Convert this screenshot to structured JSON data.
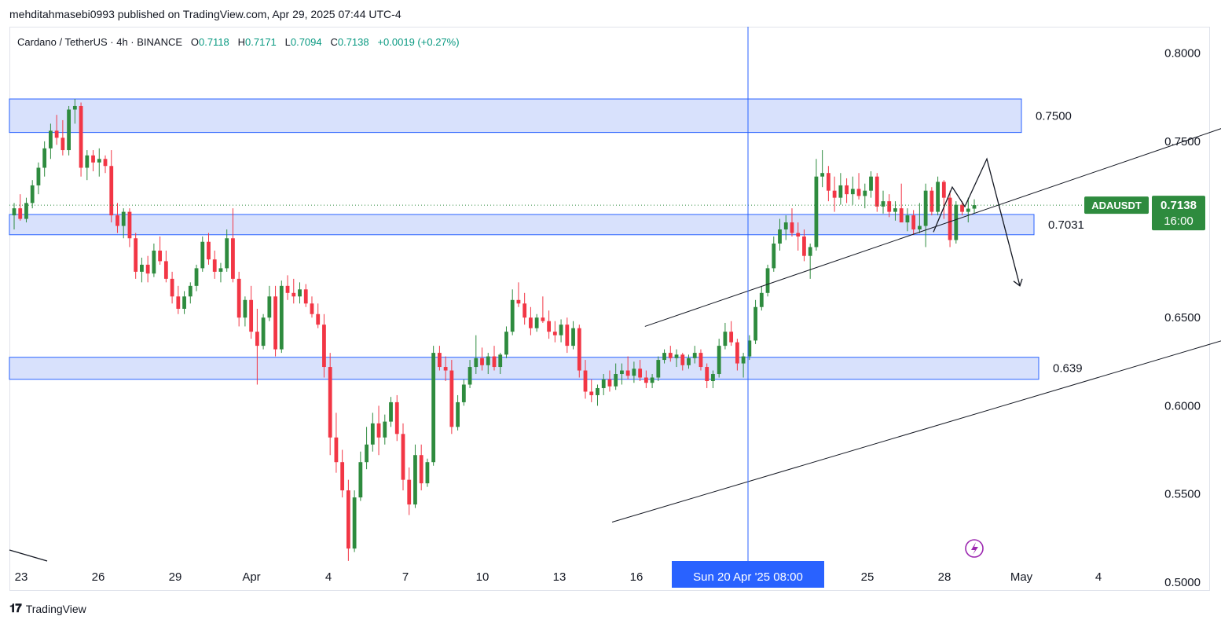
{
  "header": {
    "published_by": "mehditahmasebi0993 published on TradingView.com, Apr 29, 2025 07:44 UTC-4"
  },
  "legend": {
    "symbol": "Cardano / TetherUS · 4h · BINANCE",
    "open_label": "O",
    "open": "0.7118",
    "high_label": "H",
    "high": "0.7171",
    "low_label": "L",
    "low": "0.7094",
    "close_label": "C",
    "close": "0.7138",
    "change": "+0.0019 (+0.27%)"
  },
  "footer": {
    "brand": "TradingView",
    "brand_icon": "tradingview-logo-icon"
  },
  "colors": {
    "up": "#26a69a",
    "up_body": "#2e8b3e",
    "down": "#f23645",
    "zone_fill": "#d1dcfb",
    "zone_stroke": "#2962ff",
    "crosshair": "#2962ff",
    "label_bg": "#2e8b3e",
    "time_label_bg": "#2962ff"
  },
  "chart_data": {
    "type": "candlestick",
    "symbol": "ADAUSDT",
    "timeframe": "4h",
    "ylim": [
      0.495,
      0.815
    ],
    "y_ticks": [
      "0.8000",
      "0.7500",
      "0.6500",
      "0.6000",
      "0.5500",
      "0.5000"
    ],
    "x_ticks": [
      "23",
      "26",
      "29",
      "Apr",
      "4",
      "7",
      "10",
      "13",
      "16",
      "25",
      "28",
      "May",
      "4"
    ],
    "crosshair_time_label": "Sun 20 Apr '25   08:00",
    "last_price_label": {
      "symbol": "ADAUSDT",
      "price": "0.7138",
      "countdown": "16:00",
      "value": 0.7138
    },
    "zones": [
      {
        "label": "0.7500",
        "top": 0.774,
        "bottom": 0.755
      },
      {
        "label": "0.7031",
        "top": 0.7085,
        "bottom": 0.697
      },
      {
        "label": "0.639",
        "top": 0.6275,
        "bottom": 0.615
      }
    ],
    "channel": {
      "upper": [
        [
          "Apr 9",
          0.645
        ],
        [
          "Apr 26",
          0.765
        ]
      ],
      "lower": [
        [
          "Apr 8",
          0.534
        ],
        [
          "Apr 29",
          0.662
        ]
      ]
    },
    "projection": [
      [
        0.705
      ],
      [
        0.74
      ],
      [
        0.668
      ]
    ],
    "candles_ohlc": [
      [
        0.708,
        0.715,
        0.7,
        0.712
      ],
      [
        0.712,
        0.72,
        0.705,
        0.706
      ],
      [
        0.706,
        0.718,
        0.704,
        0.715
      ],
      [
        0.715,
        0.728,
        0.712,
        0.725
      ],
      [
        0.725,
        0.738,
        0.72,
        0.735
      ],
      [
        0.735,
        0.75,
        0.73,
        0.746
      ],
      [
        0.746,
        0.76,
        0.74,
        0.756
      ],
      [
        0.756,
        0.765,
        0.748,
        0.752
      ],
      [
        0.752,
        0.762,
        0.742,
        0.745
      ],
      [
        0.745,
        0.77,
        0.742,
        0.768
      ],
      [
        0.768,
        0.774,
        0.76,
        0.77
      ],
      [
        0.77,
        0.772,
        0.73,
        0.735
      ],
      [
        0.735,
        0.745,
        0.728,
        0.742
      ],
      [
        0.742,
        0.745,
        0.733,
        0.738
      ],
      [
        0.738,
        0.746,
        0.73,
        0.74
      ],
      [
        0.74,
        0.742,
        0.732,
        0.736
      ],
      [
        0.736,
        0.745,
        0.704,
        0.708
      ],
      [
        0.708,
        0.715,
        0.698,
        0.702
      ],
      [
        0.702,
        0.712,
        0.695,
        0.71
      ],
      [
        0.71,
        0.712,
        0.69,
        0.695
      ],
      [
        0.695,
        0.698,
        0.672,
        0.676
      ],
      [
        0.676,
        0.684,
        0.67,
        0.68
      ],
      [
        0.68,
        0.685,
        0.67,
        0.675
      ],
      [
        0.675,
        0.692,
        0.673,
        0.688
      ],
      [
        0.688,
        0.696,
        0.68,
        0.682
      ],
      [
        0.682,
        0.688,
        0.67,
        0.672
      ],
      [
        0.672,
        0.676,
        0.658,
        0.662
      ],
      [
        0.662,
        0.668,
        0.652,
        0.655
      ],
      [
        0.655,
        0.665,
        0.652,
        0.662
      ],
      [
        0.662,
        0.67,
        0.658,
        0.668
      ],
      [
        0.668,
        0.68,
        0.665,
        0.678
      ],
      [
        0.678,
        0.696,
        0.676,
        0.693
      ],
      [
        0.693,
        0.698,
        0.68,
        0.683
      ],
      [
        0.683,
        0.688,
        0.672,
        0.676
      ],
      [
        0.676,
        0.681,
        0.67,
        0.678
      ],
      [
        0.678,
        0.7,
        0.676,
        0.695
      ],
      [
        0.695,
        0.712,
        0.67,
        0.672
      ],
      [
        0.672,
        0.676,
        0.645,
        0.65
      ],
      [
        0.65,
        0.662,
        0.645,
        0.66
      ],
      [
        0.66,
        0.668,
        0.638,
        0.642
      ],
      [
        0.642,
        0.655,
        0.612,
        0.634
      ],
      [
        0.634,
        0.652,
        0.632,
        0.65
      ],
      [
        0.65,
        0.668,
        0.648,
        0.662
      ],
      [
        0.662,
        0.668,
        0.628,
        0.632
      ],
      [
        0.632,
        0.671,
        0.63,
        0.668
      ],
      [
        0.668,
        0.674,
        0.66,
        0.664
      ],
      [
        0.664,
        0.672,
        0.658,
        0.662
      ],
      [
        0.662,
        0.67,
        0.658,
        0.666
      ],
      [
        0.666,
        0.669,
        0.656,
        0.658
      ],
      [
        0.658,
        0.662,
        0.65,
        0.652
      ],
      [
        0.652,
        0.658,
        0.644,
        0.646
      ],
      [
        0.646,
        0.652,
        0.616,
        0.622
      ],
      [
        0.622,
        0.63,
        0.572,
        0.582
      ],
      [
        0.582,
        0.596,
        0.562,
        0.568
      ],
      [
        0.568,
        0.575,
        0.548,
        0.552
      ],
      [
        0.552,
        0.558,
        0.512,
        0.519
      ],
      [
        0.519,
        0.552,
        0.517,
        0.548
      ],
      [
        0.548,
        0.574,
        0.546,
        0.568
      ],
      [
        0.568,
        0.588,
        0.564,
        0.578
      ],
      [
        0.578,
        0.596,
        0.574,
        0.59
      ],
      [
        0.59,
        0.6,
        0.572,
        0.582
      ],
      [
        0.582,
        0.595,
        0.578,
        0.591
      ],
      [
        0.591,
        0.605,
        0.588,
        0.602
      ],
      [
        0.602,
        0.606,
        0.58,
        0.584
      ],
      [
        0.584,
        0.59,
        0.552,
        0.558
      ],
      [
        0.558,
        0.565,
        0.538,
        0.544
      ],
      [
        0.544,
        0.578,
        0.542,
        0.572
      ],
      [
        0.572,
        0.578,
        0.552,
        0.556
      ],
      [
        0.556,
        0.57,
        0.554,
        0.568
      ],
      [
        0.568,
        0.634,
        0.566,
        0.63
      ],
      [
        0.63,
        0.634,
        0.62,
        0.622
      ],
      [
        0.622,
        0.628,
        0.614,
        0.62
      ],
      [
        0.62,
        0.626,
        0.584,
        0.588
      ],
      [
        0.588,
        0.606,
        0.586,
        0.602
      ],
      [
        0.602,
        0.615,
        0.6,
        0.612
      ],
      [
        0.612,
        0.626,
        0.61,
        0.622
      ],
      [
        0.622,
        0.64,
        0.618,
        0.627
      ],
      [
        0.627,
        0.633,
        0.62,
        0.623
      ],
      [
        0.623,
        0.63,
        0.618,
        0.628
      ],
      [
        0.628,
        0.634,
        0.62,
        0.622
      ],
      [
        0.622,
        0.63,
        0.618,
        0.629
      ],
      [
        0.629,
        0.645,
        0.627,
        0.642
      ],
      [
        0.642,
        0.666,
        0.64,
        0.66
      ],
      [
        0.66,
        0.67,
        0.656,
        0.658
      ],
      [
        0.658,
        0.664,
        0.646,
        0.65
      ],
      [
        0.65,
        0.656,
        0.64,
        0.644
      ],
      [
        0.644,
        0.652,
        0.642,
        0.65
      ],
      [
        0.65,
        0.662,
        0.647,
        0.648
      ],
      [
        0.648,
        0.654,
        0.638,
        0.642
      ],
      [
        0.642,
        0.648,
        0.636,
        0.64
      ],
      [
        0.64,
        0.649,
        0.636,
        0.646
      ],
      [
        0.646,
        0.65,
        0.63,
        0.634
      ],
      [
        0.634,
        0.648,
        0.632,
        0.644
      ],
      [
        0.644,
        0.646,
        0.616,
        0.62
      ],
      [
        0.62,
        0.626,
        0.604,
        0.608
      ],
      [
        0.608,
        0.615,
        0.602,
        0.606
      ],
      [
        0.606,
        0.612,
        0.6,
        0.61
      ],
      [
        0.61,
        0.618,
        0.606,
        0.615
      ],
      [
        0.615,
        0.62,
        0.608,
        0.611
      ],
      [
        0.611,
        0.624,
        0.609,
        0.618
      ],
      [
        0.618,
        0.624,
        0.612,
        0.62
      ],
      [
        0.62,
        0.628,
        0.615,
        0.617
      ],
      [
        0.617,
        0.625,
        0.613,
        0.621
      ],
      [
        0.621,
        0.626,
        0.614,
        0.616
      ],
      [
        0.616,
        0.62,
        0.61,
        0.613
      ],
      [
        0.613,
        0.618,
        0.61,
        0.616
      ],
      [
        0.616,
        0.628,
        0.614,
        0.626
      ],
      [
        0.626,
        0.632,
        0.624,
        0.63
      ],
      [
        0.63,
        0.634,
        0.625,
        0.627
      ],
      [
        0.627,
        0.632,
        0.622,
        0.629
      ],
      [
        0.629,
        0.63,
        0.62,
        0.623
      ],
      [
        0.623,
        0.629,
        0.621,
        0.627
      ],
      [
        0.627,
        0.634,
        0.624,
        0.63
      ],
      [
        0.63,
        0.632,
        0.62,
        0.622
      ],
      [
        0.622,
        0.624,
        0.61,
        0.614
      ],
      [
        0.614,
        0.62,
        0.61,
        0.618
      ],
      [
        0.618,
        0.638,
        0.616,
        0.634
      ],
      [
        0.634,
        0.647,
        0.632,
        0.642
      ],
      [
        0.642,
        0.648,
        0.634,
        0.636
      ],
      [
        0.636,
        0.638,
        0.62,
        0.624
      ],
      [
        0.624,
        0.63,
        0.616,
        0.628
      ],
      [
        0.628,
        0.64,
        0.626,
        0.637
      ],
      [
        0.637,
        0.66,
        0.635,
        0.656
      ],
      [
        0.656,
        0.668,
        0.654,
        0.664
      ],
      [
        0.664,
        0.68,
        0.662,
        0.678
      ],
      [
        0.678,
        0.696,
        0.676,
        0.692
      ],
      [
        0.692,
        0.706,
        0.688,
        0.7
      ],
      [
        0.7,
        0.708,
        0.694,
        0.704
      ],
      [
        0.704,
        0.712,
        0.696,
        0.698
      ],
      [
        0.698,
        0.704,
        0.688,
        0.696
      ],
      [
        0.696,
        0.7,
        0.682,
        0.685
      ],
      [
        0.685,
        0.692,
        0.672,
        0.69
      ],
      [
        0.69,
        0.74,
        0.688,
        0.73
      ],
      [
        0.73,
        0.745,
        0.724,
        0.732
      ],
      [
        0.732,
        0.736,
        0.716,
        0.722
      ],
      [
        0.722,
        0.73,
        0.71,
        0.718
      ],
      [
        0.718,
        0.732,
        0.714,
        0.725
      ],
      [
        0.725,
        0.729,
        0.715,
        0.72
      ],
      [
        0.72,
        0.73,
        0.714,
        0.723
      ],
      [
        0.723,
        0.732,
        0.717,
        0.719
      ],
      [
        0.719,
        0.726,
        0.712,
        0.722
      ],
      [
        0.722,
        0.733,
        0.718,
        0.73
      ],
      [
        0.73,
        0.732,
        0.71,
        0.713
      ],
      [
        0.713,
        0.722,
        0.709,
        0.716
      ],
      [
        0.716,
        0.72,
        0.707,
        0.71
      ],
      [
        0.71,
        0.716,
        0.705,
        0.712
      ],
      [
        0.712,
        0.726,
        0.71,
        0.704
      ],
      [
        0.704,
        0.712,
        0.699,
        0.708
      ],
      [
        0.708,
        0.711,
        0.697,
        0.7
      ],
      [
        0.7,
        0.715,
        0.698,
        0.702
      ],
      [
        0.702,
        0.726,
        0.69,
        0.722
      ],
      [
        0.722,
        0.724,
        0.708,
        0.71
      ],
      [
        0.71,
        0.73,
        0.708,
        0.727
      ],
      [
        0.727,
        0.728,
        0.706,
        0.718
      ],
      [
        0.718,
        0.722,
        0.69,
        0.694
      ],
      [
        0.694,
        0.716,
        0.692,
        0.714
      ],
      [
        0.714,
        0.716,
        0.708,
        0.71
      ],
      [
        0.71,
        0.718,
        0.704,
        0.7118
      ],
      [
        0.7118,
        0.7171,
        0.7094,
        0.7138
      ]
    ]
  }
}
